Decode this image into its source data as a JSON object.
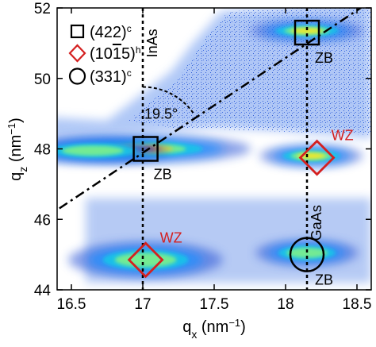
{
  "chart_data": {
    "type": "heatmap",
    "title": "",
    "xlabel": "q",
    "xlabel_sub": "x",
    "xlabel_unit": " (nm",
    "xlabel_unit_exp": "−1",
    "xlabel_unit_close": ")",
    "ylabel": "q",
    "ylabel_sub": "z",
    "ylabel_unit": " (nm",
    "ylabel_unit_exp": "−1",
    "ylabel_unit_close": ")",
    "xlim": [
      16.4,
      18.6
    ],
    "ylim": [
      44,
      52
    ],
    "x_ticks": [
      16.5,
      17,
      17.5,
      18,
      18.5
    ],
    "x_tick_labels": [
      "16.5",
      "17",
      "17.5",
      "18",
      "18.5"
    ],
    "y_ticks": [
      44,
      46,
      48,
      50,
      52
    ],
    "y_tick_labels": [
      "44",
      "46",
      "48",
      "50",
      "52"
    ],
    "legend": {
      "position": "top-left",
      "entries": [
        {
          "symbol": "square",
          "color": "#000000",
          "label": "(422)",
          "sup": "c"
        },
        {
          "symbol": "diamond",
          "color": "#d42020",
          "label": "(10",
          "label_bar": "1",
          "label_end": "5)",
          "sup": "h"
        },
        {
          "symbol": "circle",
          "color": "#000000",
          "label": "(331)",
          "sup": "c"
        }
      ]
    },
    "vertical_lines": [
      {
        "x": 17.0,
        "label": "InAs",
        "label_y": 51.0
      },
      {
        "x": 18.15,
        "label": "GaAs",
        "label_y": 45.9
      }
    ],
    "diagonal_line": {
      "x1": 16.3,
      "y1": 46.0,
      "x2": 18.6,
      "y2": 52.2
    },
    "angle_annotation": {
      "label": "19.5°",
      "center_x": 17.0,
      "center_y": 48.0
    },
    "markers": [
      {
        "symbol": "square",
        "x": 17.02,
        "y": 48.0,
        "label": "ZB",
        "color": "#000000"
      },
      {
        "symbol": "square",
        "x": 18.15,
        "y": 51.3,
        "label": "ZB",
        "color": "#000000"
      },
      {
        "symbol": "diamond",
        "x": 17.02,
        "y": 44.85,
        "label": "WZ",
        "color": "#d42020"
      },
      {
        "symbol": "diamond",
        "x": 18.22,
        "y": 47.75,
        "label": "WZ",
        "color": "#d42020"
      },
      {
        "symbol": "circle",
        "x": 18.15,
        "y": 45.0,
        "label": "ZB",
        "color": "#000000"
      }
    ],
    "intensity_peaks": [
      {
        "x": 17.0,
        "y": 48.0,
        "sx": 0.42,
        "sy": 0.22,
        "amp": 1.0
      },
      {
        "x": 16.65,
        "y": 47.95,
        "sx": 0.3,
        "sy": 0.2,
        "amp": 0.55
      },
      {
        "x": 18.18,
        "y": 47.8,
        "sx": 0.2,
        "sy": 0.17,
        "amp": 0.7
      },
      {
        "x": 18.15,
        "y": 51.35,
        "sx": 0.22,
        "sy": 0.16,
        "amp": 0.72
      },
      {
        "x": 17.02,
        "y": 44.85,
        "sx": 0.3,
        "sy": 0.28,
        "amp": 0.5
      },
      {
        "x": 18.15,
        "y": 45.05,
        "sx": 0.2,
        "sy": 0.2,
        "amp": 0.5
      }
    ]
  }
}
